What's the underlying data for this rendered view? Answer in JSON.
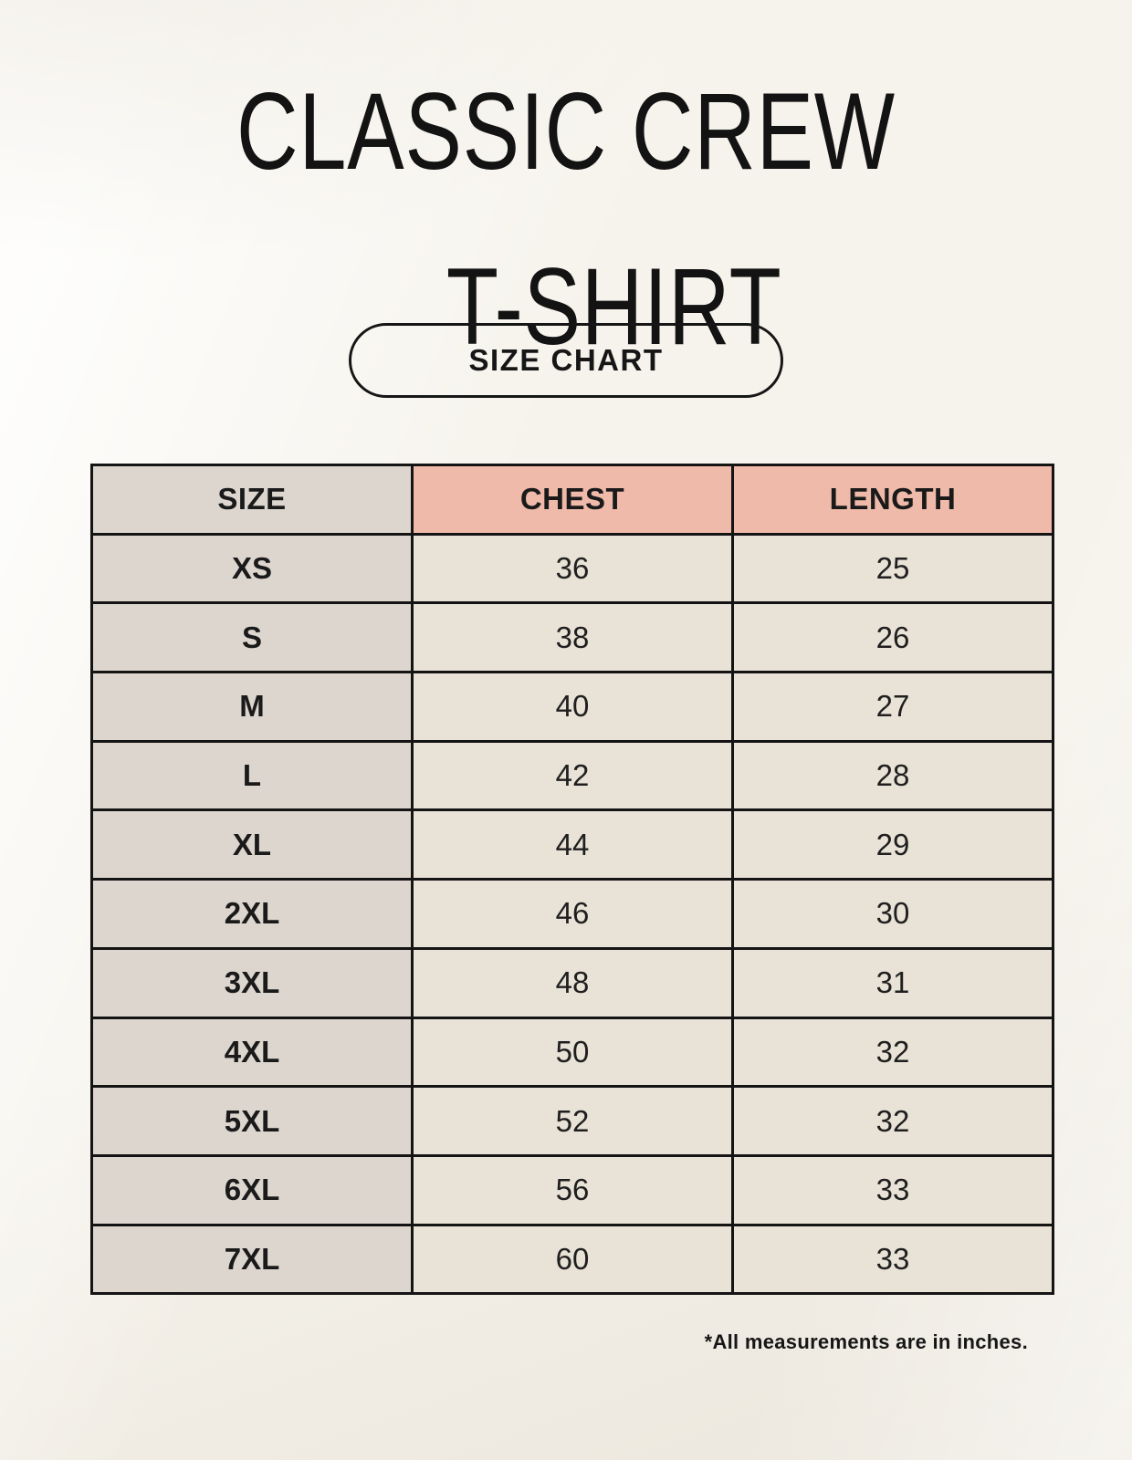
{
  "header": {
    "title_line1": "CLASSIC CREW",
    "title_line2": "T-SHIRT",
    "size_chart_button_label": "SIZE CHART"
  },
  "chart_data": {
    "type": "table",
    "title": "CLASSIC CREW T-SHIRT SIZE CHART",
    "columns": [
      "SIZE",
      "CHEST",
      "LENGTH"
    ],
    "rows": [
      [
        "XS",
        36,
        25
      ],
      [
        "S",
        38,
        26
      ],
      [
        "M",
        40,
        27
      ],
      [
        "L",
        42,
        28
      ],
      [
        "XL",
        44,
        29
      ],
      [
        "2XL",
        46,
        30
      ],
      [
        "3XL",
        48,
        31
      ],
      [
        "4XL",
        50,
        32
      ],
      [
        "5XL",
        52,
        32
      ],
      [
        "6XL",
        56,
        33
      ],
      [
        "7XL",
        60,
        33
      ]
    ],
    "units": "inches"
  },
  "footer": {
    "note": "*All measurements are in inches."
  },
  "colors": {
    "background": "#f6f3ec",
    "size_col_bg": "#ddd6cf",
    "accent_header_bg": "#efbaa9",
    "data_cell_bg": "#e9e2d6",
    "border": "#141414",
    "text": "#1a1a1a"
  }
}
